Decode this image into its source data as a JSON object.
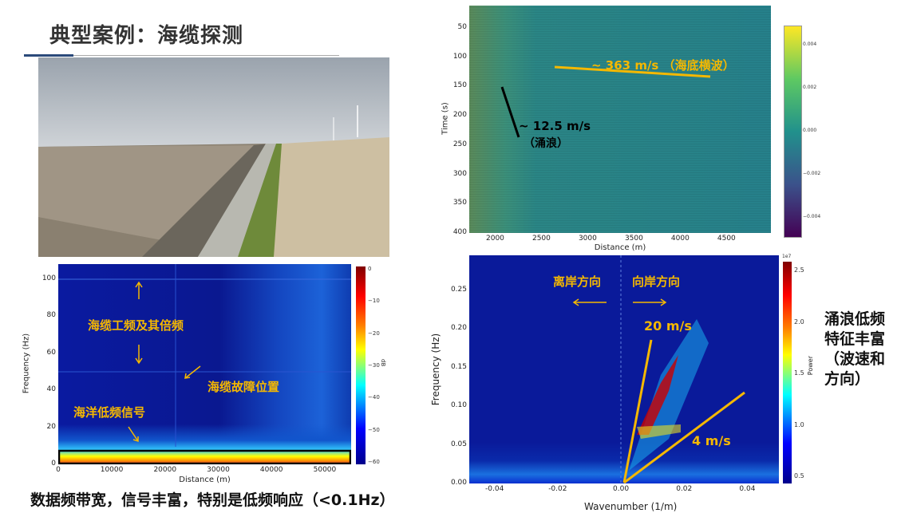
{
  "title": "典型案例：海缆探测",
  "photo_alt": "seawall-photo",
  "plot_top": {
    "xlabel": "Distance (m)",
    "ylabel": "Time (s)",
    "xticks": [
      2000,
      2500,
      3000,
      3500,
      4000,
      4500
    ],
    "xrange": [
      1720,
      4980
    ],
    "yticks": [
      50,
      100,
      150,
      200,
      250,
      300,
      350,
      400
    ],
    "yrange": [
      12,
      400
    ],
    "cbticks": [
      "0.004",
      "0.002",
      "0.000",
      "−0.002",
      "−0.004"
    ],
    "ann_fast": "~ 363 m/s （海底横波）",
    "ann_slow": "~ 12.5 m/s",
    "ann_slow2": "（涌浪）"
  },
  "plot_spectrum": {
    "xlabel": "Distance (m)",
    "ylabel": "Frequency (Hz)",
    "xticks": [
      0,
      10000,
      20000,
      30000,
      40000,
      50000
    ],
    "xrange": [
      0,
      55000
    ],
    "yticks": [
      0,
      20,
      40,
      60,
      80,
      100
    ],
    "yrange": [
      0,
      108
    ],
    "cbticks": [
      "0",
      "−10",
      "−20",
      "−30",
      "−40",
      "−50",
      "−60"
    ],
    "cblabel": "dB",
    "ann1": "海缆工频及其倍频",
    "ann2": "海缆故障位置",
    "ann3": "海洋低频信号"
  },
  "plot_fk": {
    "xlabel": "Wavenumber (1/m)",
    "ylabel": "Frequency (Hz)",
    "xticks": [
      "-0.04",
      "-0.02",
      "0.00",
      "0.02",
      "0.04"
    ],
    "xrange": [
      -0.048,
      0.05
    ],
    "yticks": [
      "0.00",
      "0.05",
      "0.10",
      "0.15",
      "0.20",
      "0.25"
    ],
    "yrange": [
      0,
      0.295
    ],
    "cbticks": [
      "2.5",
      "2.0",
      "1.5",
      "1.0",
      "0.5"
    ],
    "cbexp": "1e7",
    "cblabel": "Power",
    "ann_off": "离岸方向",
    "ann_on": "向岸方向",
    "ann_20": "20 m/s",
    "ann_4": "4 m/s"
  },
  "bottom_text": "数据频带宽，信号丰富，特别是低频响应（<0.1Hz）",
  "side_text": "涌浪低频特征丰富（波速和方向）"
}
